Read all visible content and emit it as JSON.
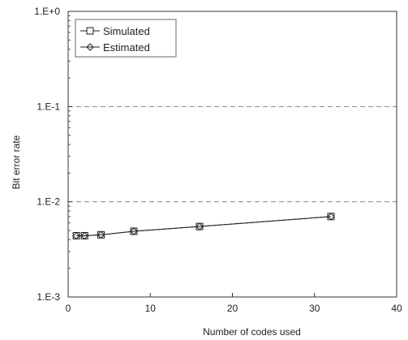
{
  "chart_data": {
    "type": "line",
    "title": "",
    "xlabel": "Number of codes used",
    "ylabel": "Bit error rate",
    "xlim": [
      0,
      40
    ],
    "ylim": [
      0.001,
      1
    ],
    "yscale": "log",
    "xticks": [
      0,
      10,
      20,
      30,
      40
    ],
    "xtick_labels": [
      "0",
      "10",
      "20",
      "30",
      "40"
    ],
    "yticks": [
      0.001,
      0.01,
      0.1,
      1
    ],
    "ytick_labels": [
      "1.E-3",
      "1.E-2",
      "1.E-1",
      "1.E+0"
    ],
    "grid": "horizontal dashed",
    "legend_position": "top-left",
    "series": [
      {
        "name": "Simulated",
        "marker": "square",
        "x": [
          1,
          2,
          4,
          8,
          16,
          32
        ],
        "y": [
          0.0044,
          0.0044,
          0.0045,
          0.0049,
          0.0055,
          0.007
        ]
      },
      {
        "name": "Estimated",
        "marker": "diamond",
        "x": [
          1,
          2,
          4,
          8,
          16,
          32
        ],
        "y": [
          0.0044,
          0.0044,
          0.0045,
          0.0049,
          0.0055,
          0.007
        ]
      }
    ]
  }
}
